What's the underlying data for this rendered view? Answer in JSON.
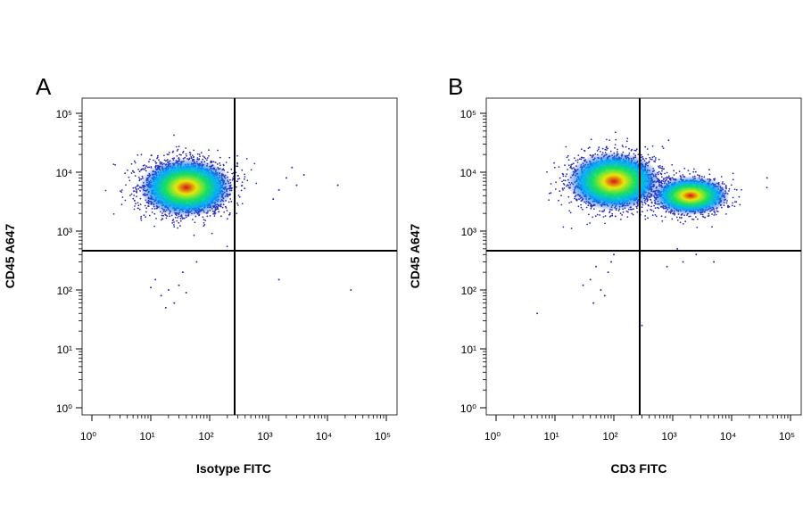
{
  "chart_data": [
    {
      "type": "scatter",
      "panel_label": "A",
      "xlabel": "Isotype FITC",
      "ylabel": "CD45 A647",
      "x_scale": "log",
      "y_scale": "log",
      "xlim": [
        1,
        100000
      ],
      "ylim": [
        1,
        100000
      ],
      "x_ticks": [
        1,
        10,
        100,
        1000,
        10000,
        100000
      ],
      "y_ticks": [
        1,
        10,
        100,
        1000,
        10000,
        100000
      ],
      "quadrant_gate": {
        "x": 350,
        "y": 550
      },
      "grid": false,
      "populations": [
        {
          "x": 40,
          "y": 5500,
          "count": 3000,
          "note": "main density cluster"
        }
      ],
      "sparse_events": [
        [
          20,
          100
        ],
        [
          15,
          80
        ],
        [
          30,
          120
        ],
        [
          25,
          60
        ],
        [
          12,
          150
        ],
        [
          40,
          90
        ],
        [
          18,
          50
        ],
        [
          35,
          200
        ],
        [
          60,
          300
        ],
        [
          10,
          110
        ],
        [
          2000,
          8000
        ],
        [
          1500,
          5000
        ],
        [
          3000,
          6000
        ],
        [
          4000,
          9000
        ],
        [
          2500,
          12000
        ],
        [
          15000,
          6000
        ],
        [
          1200,
          3500
        ],
        [
          1500,
          150
        ],
        [
          25000,
          100
        ]
      ]
    },
    {
      "type": "scatter",
      "panel_label": "B",
      "xlabel": "CD3 FITC",
      "ylabel": "CD45 A647",
      "x_scale": "log",
      "y_scale": "log",
      "xlim": [
        1,
        100000
      ],
      "ylim": [
        1,
        100000
      ],
      "x_ticks": [
        1,
        10,
        100,
        1000,
        10000,
        100000
      ],
      "y_ticks": [
        1,
        10,
        100,
        1000,
        10000,
        100000
      ],
      "quadrant_gate": {
        "x": 350,
        "y": 550
      },
      "grid": false,
      "populations": [
        {
          "x": 100,
          "y": 7000,
          "count": 2500,
          "note": "CD3- population"
        },
        {
          "x": 2000,
          "y": 4000,
          "count": 1400,
          "note": "CD3+ population"
        }
      ],
      "sparse_events": [
        [
          40,
          150
        ],
        [
          60,
          100
        ],
        [
          80,
          200
        ],
        [
          30,
          120
        ],
        [
          90,
          300
        ],
        [
          50,
          250
        ],
        [
          70,
          80
        ],
        [
          100,
          400
        ],
        [
          45,
          60
        ],
        [
          5,
          40
        ],
        [
          300,
          25
        ],
        [
          1500,
          300
        ],
        [
          2500,
          400
        ],
        [
          800,
          250
        ],
        [
          5000,
          300
        ],
        [
          40000,
          8000
        ],
        [
          1200,
          500
        ]
      ]
    }
  ],
  "colors": {
    "density_low": "#1a2ecc",
    "density_mid_low": "#00b0ff",
    "density_mid": "#12e85c",
    "density_mid_high": "#f0f000",
    "density_high": "#e01010",
    "sparse_event": "#2a2ab8",
    "axes": "#000000"
  }
}
